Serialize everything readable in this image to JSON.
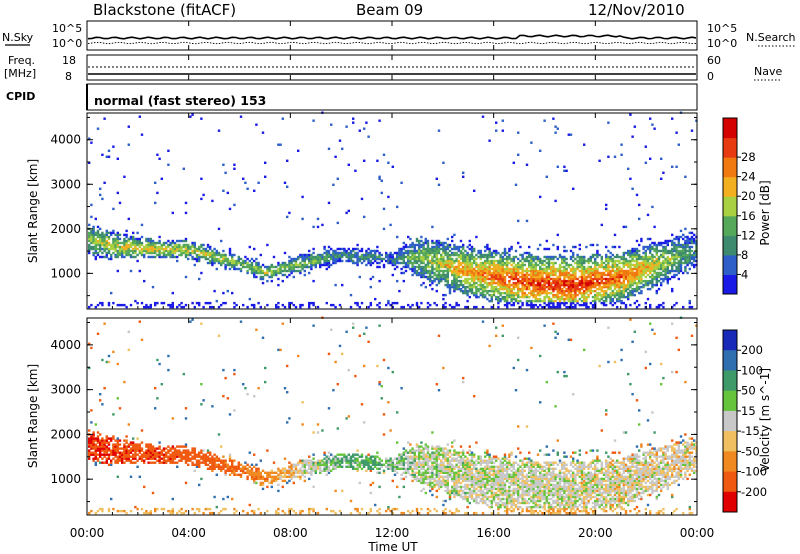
{
  "header": {
    "title": "Blackstone (fitACF)",
    "beam": "Beam 09",
    "date": "12/Nov/2010"
  },
  "status_panels": {
    "nsky_label": "N.Sky",
    "nsky_top": "10^5",
    "nsky_bottom": "10^0",
    "nsearch_label": "N.Search",
    "nsearch_top": "10^5",
    "nsearch_bottom": "10^0",
    "freq_label_1": "Freq.",
    "freq_label_2": "[MHz]",
    "freq_top": "18",
    "freq_bottom": "8",
    "nave_label": "Nave",
    "nave_top": "60",
    "nave_bottom": "0",
    "cpid_label": "CPID",
    "cpid_text": "normal (fast stereo) 153"
  },
  "chart_data": [
    {
      "type": "heatmap",
      "name": "power",
      "ylabel": "Slant Range [km]",
      "ylim": [
        200,
        4600
      ],
      "yticks": [
        "1000",
        "2000",
        "3000",
        "4000"
      ],
      "xlim": [
        "00:00",
        "24:00"
      ],
      "xticks": [
        "00:00",
        "04:00",
        "08:00",
        "12:00",
        "16:00",
        "20:00",
        "00:00"
      ],
      "colorbar": {
        "label": "Power [dB]",
        "ticks": [
          "4",
          "8",
          "12",
          "16",
          "20",
          "24",
          "28"
        ],
        "colors": [
          "#1a1ae6",
          "#2e5fc8",
          "#3d8a6f",
          "#55a85a",
          "#a8d040",
          "#f2b020",
          "#f07a10",
          "#e83a10",
          "#d40000"
        ]
      },
      "echo_band": [
        {
          "hour": 0,
          "center_km": 1750,
          "width_km": 700,
          "level": 0.45
        },
        {
          "hour": 1,
          "center_km": 1600,
          "width_km": 600,
          "level": 0.55
        },
        {
          "hour": 2,
          "center_km": 1550,
          "width_km": 450,
          "level": 0.6
        },
        {
          "hour": 4,
          "center_km": 1500,
          "width_km": 400,
          "level": 0.55
        },
        {
          "hour": 6,
          "center_km": 1200,
          "width_km": 350,
          "level": 0.5
        },
        {
          "hour": 7,
          "center_km": 1000,
          "width_km": 300,
          "level": 0.5
        },
        {
          "hour": 8.5,
          "center_km": 1200,
          "width_km": 400,
          "level": 0.45
        },
        {
          "hour": 10,
          "center_km": 1400,
          "width_km": 350,
          "level": 0.3
        },
        {
          "hour": 12,
          "center_km": 1300,
          "width_km": 300,
          "level": 0.25
        },
        {
          "hour": 13,
          "center_km": 1350,
          "width_km": 900,
          "level": 0.45
        },
        {
          "hour": 15,
          "center_km": 1000,
          "width_km": 1100,
          "level": 0.7
        },
        {
          "hour": 17,
          "center_km": 800,
          "width_km": 1200,
          "level": 0.85
        },
        {
          "hour": 19,
          "center_km": 700,
          "width_km": 1300,
          "level": 0.9
        },
        {
          "hour": 21,
          "center_km": 900,
          "width_km": 1100,
          "level": 0.8
        },
        {
          "hour": 23,
          "center_km": 1300,
          "width_km": 900,
          "level": 0.45
        },
        {
          "hour": 24,
          "center_km": 1500,
          "width_km": 700,
          "level": 0.3
        }
      ]
    },
    {
      "type": "heatmap",
      "name": "velocity",
      "ylabel": "Slant Range [km]",
      "ylim": [
        200,
        4600
      ],
      "yticks": [
        "1000",
        "2000",
        "3000",
        "4000"
      ],
      "xlim": [
        "00:00",
        "24:00"
      ],
      "xticks": [
        "00:00",
        "04:00",
        "08:00",
        "12:00",
        "16:00",
        "20:00",
        "00:00"
      ],
      "xlabel": "Time UT",
      "colorbar": {
        "label": "Velocity [m s^-1]",
        "ticks": [
          "200",
          "100",
          "50",
          "15",
          "-15",
          "-50",
          "-100",
          "-200"
        ],
        "colors": [
          "#1a2ab8",
          "#2f6fb0",
          "#3f9a6a",
          "#66c43c",
          "#c8c8c8",
          "#f0c060",
          "#f08a20",
          "#f05a10",
          "#e00000"
        ]
      },
      "velocity_band_hours": [
        {
          "hour": 0,
          "velocity_ms": -150
        },
        {
          "hour": 4,
          "velocity_ms": -120
        },
        {
          "hour": 7,
          "velocity_ms": -60
        },
        {
          "hour": 9,
          "velocity_ms": 10
        },
        {
          "hour": 11,
          "velocity_ms": 40
        },
        {
          "hour": 13,
          "velocity_ms": 5
        },
        {
          "hour": 18,
          "velocity_ms": 0
        },
        {
          "hour": 23,
          "velocity_ms": -10
        }
      ]
    }
  ]
}
